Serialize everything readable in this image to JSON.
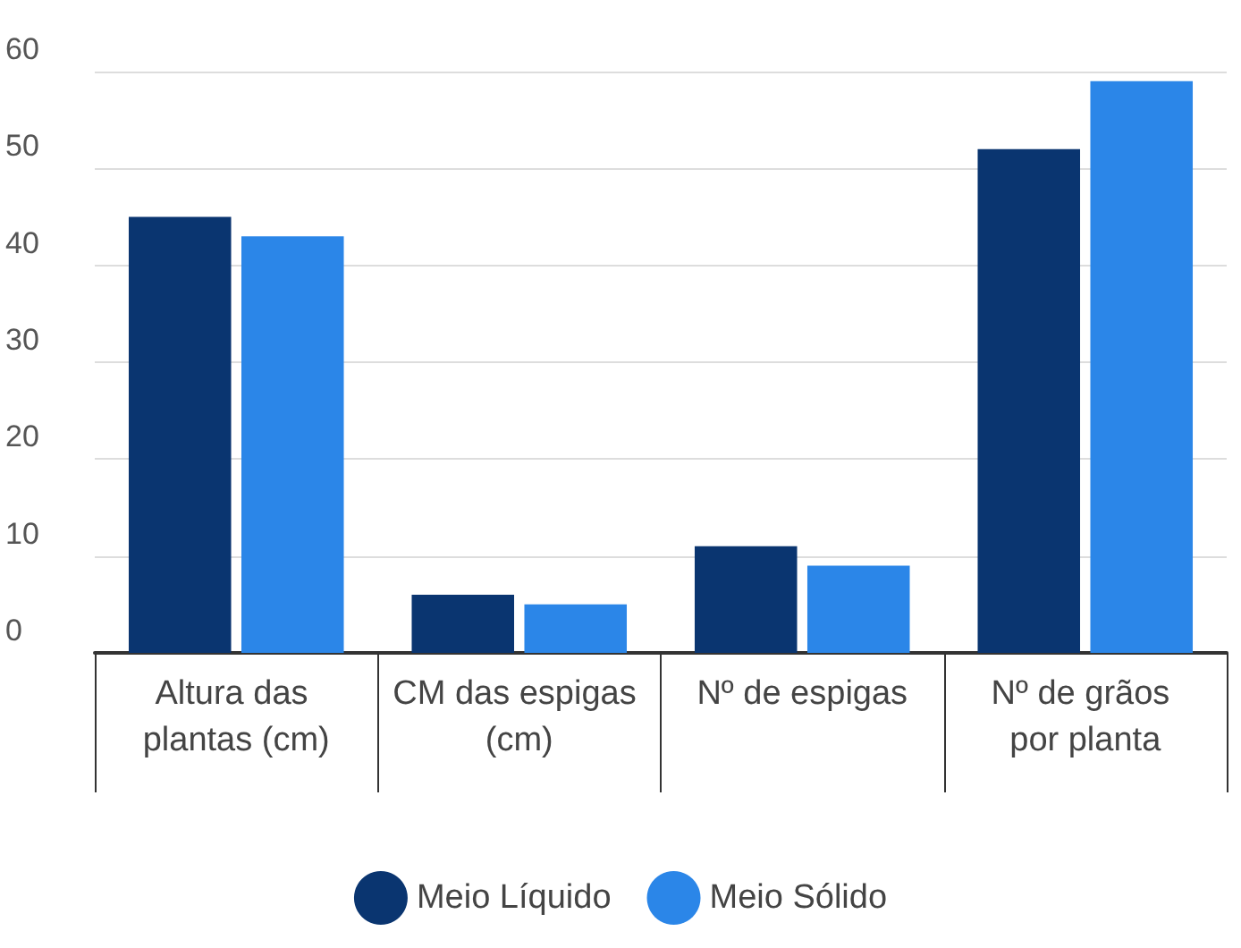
{
  "chart_data": {
    "type": "bar",
    "categories": [
      "Altura das plantas (cm)",
      "CM das espigas (cm)",
      "Nº de espigas",
      "Nº de grãos por planta"
    ],
    "series": [
      {
        "name": "Meio Líquido",
        "color": "#0a3570",
        "values": [
          45,
          6,
          11,
          52
        ]
      },
      {
        "name": "Meio Sólido",
        "color": "#2b86e8",
        "values": [
          43,
          5,
          9,
          59
        ]
      }
    ],
    "ylim": [
      0,
      60
    ],
    "yticks": [
      0,
      10,
      20,
      30,
      40,
      50,
      60
    ],
    "grid": "y",
    "legend": "bottom"
  }
}
